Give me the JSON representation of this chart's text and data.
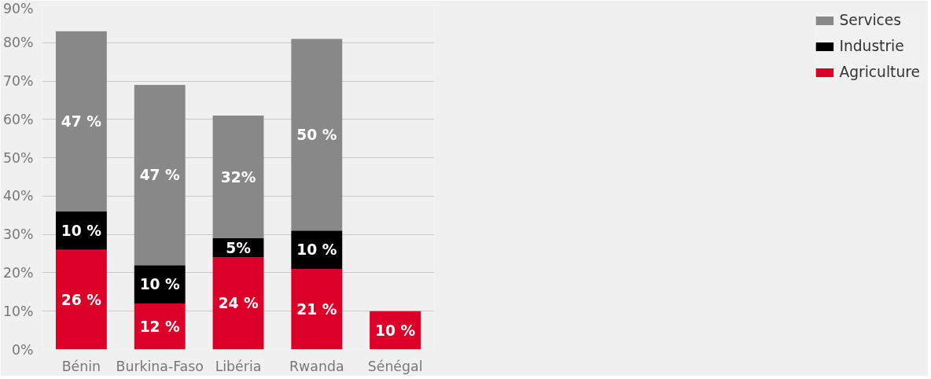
{
  "chart_data": {
    "type": "bar",
    "stacked": true,
    "categories": [
      "Bénin",
      "Burkina-Faso",
      "Libéria",
      "Rwanda",
      "Sénégal"
    ],
    "series": [
      {
        "name": "Agriculture",
        "color": "#dc0028",
        "values": [
          26,
          12,
          24,
          21,
          10
        ],
        "value_labels": [
          "26 %",
          "12 %",
          "24 %",
          "21 %",
          "10 %"
        ]
      },
      {
        "name": "Industrie",
        "color": "#000000",
        "values": [
          10,
          10,
          5,
          10,
          null
        ],
        "value_labels": [
          "10 %",
          "10 %",
          "5%",
          "10 %",
          null
        ]
      },
      {
        "name": "Services",
        "color": "#888888",
        "values": [
          47,
          47,
          32,
          50,
          null
        ],
        "value_labels": [
          "47 %",
          "47 %",
          "32%",
          "50 %",
          null
        ]
      }
    ],
    "ylim": [
      0,
      90
    ],
    "yticks": [
      {
        "value": 0,
        "label": "0%"
      },
      {
        "value": 10,
        "label": "10%"
      },
      {
        "value": 20,
        "label": "20%"
      },
      {
        "value": 30,
        "label": "30%"
      },
      {
        "value": 40,
        "label": "40%"
      },
      {
        "value": 50,
        "label": "50%"
      },
      {
        "value": 60,
        "label": "60%"
      },
      {
        "value": 70,
        "label": "70%"
      },
      {
        "value": 80,
        "label": "80%"
      },
      {
        "value": 90,
        "label": "90%"
      }
    ],
    "grid": "y",
    "legend": "right"
  }
}
